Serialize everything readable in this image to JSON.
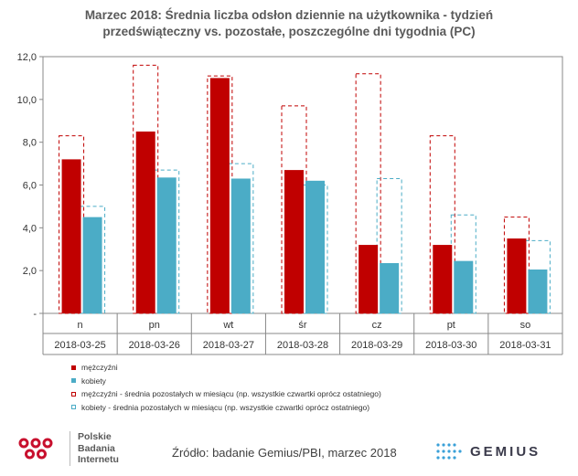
{
  "chart_data": {
    "type": "bar",
    "title_line1": "Marzec 2018: Średnia liczba odsłon dziennie na użytkownika - tydzień",
    "title_line2": "przedświąteczny vs. pozostałe, poszczególne dni tygodnia (PC)",
    "categories": [
      "n",
      "pn",
      "wt",
      "śr",
      "cz",
      "pt",
      "so"
    ],
    "dates": [
      "2018-03-25",
      "2018-03-26",
      "2018-03-27",
      "2018-03-28",
      "2018-03-29",
      "2018-03-30",
      "2018-03-31"
    ],
    "ylim": [
      0,
      12
    ],
    "yticks": [
      "-",
      "2,0",
      "4,0",
      "6,0",
      "8,0",
      "10,0",
      "12,0"
    ],
    "series": [
      {
        "name": "mężczyźni",
        "style": "solid",
        "color": "#c00000",
        "values": [
          7.2,
          8.5,
          11.0,
          6.7,
          3.2,
          3.2,
          3.5
        ]
      },
      {
        "name": "kobiety",
        "style": "solid",
        "color": "#4bacc6",
        "values": [
          4.5,
          6.35,
          6.3,
          6.2,
          2.35,
          2.45,
          2.05
        ]
      },
      {
        "name": "mężczyźni - średnia pozostałych w miesiącu (np. wszystkie czwartki oprócz ostatniego)",
        "style": "dashed",
        "color": "#c00000",
        "values": [
          8.3,
          11.6,
          11.1,
          9.7,
          11.2,
          8.3,
          4.5
        ]
      },
      {
        "name": "kobiety - średnia pozostałych w miesiącu (np. wszystkie czwartki oprócz ostatniego)",
        "style": "dashed",
        "color": "#4bacc6",
        "values": [
          5.0,
          6.7,
          7.0,
          6.0,
          6.3,
          4.6,
          3.4
        ]
      }
    ]
  },
  "footer": {
    "source": "Źródło: badanie Gemius/PBI, marzec 2018",
    "pbi_line1": "Polskie",
    "pbi_line2": "Badania",
    "pbi_line3": "Internetu",
    "gemius": "GEMIUS"
  }
}
